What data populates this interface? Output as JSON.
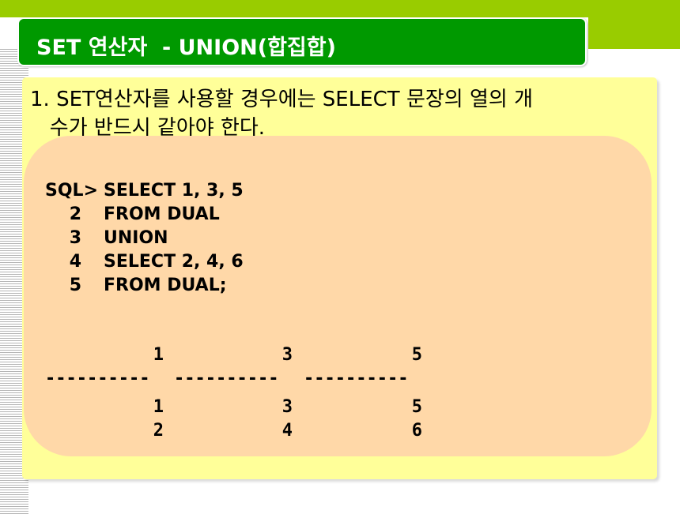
{
  "slide": {
    "title": "SET 연산자  - UNION(합집합)",
    "colors": {
      "title_bg": "#009900",
      "accent_green": "#99cc00",
      "content_bg": "#ffff99",
      "code_bg": "#ffd8a8"
    },
    "point_text": "1. SET연산자를 사용할 경우에는 SELECT 문장의 열의 개\n   수가 반드시 같아야 한다.",
    "sql_lines": [
      {
        "no": "SQL>",
        "text": "SELECT 1, 3, 5"
      },
      {
        "no": "2",
        "text": "FROM DUAL"
      },
      {
        "no": "3",
        "text": "UNION"
      },
      {
        "no": "4",
        "text": "SELECT 2, 4, 6"
      },
      {
        "no": "5",
        "text": "FROM DUAL;"
      }
    ],
    "result": {
      "headers": [
        "1",
        "3",
        "5"
      ],
      "separators": [
        "----------",
        "----------",
        "----------"
      ],
      "rows": [
        [
          "1",
          "3",
          "5"
        ],
        [
          "2",
          "4",
          "6"
        ]
      ]
    }
  }
}
